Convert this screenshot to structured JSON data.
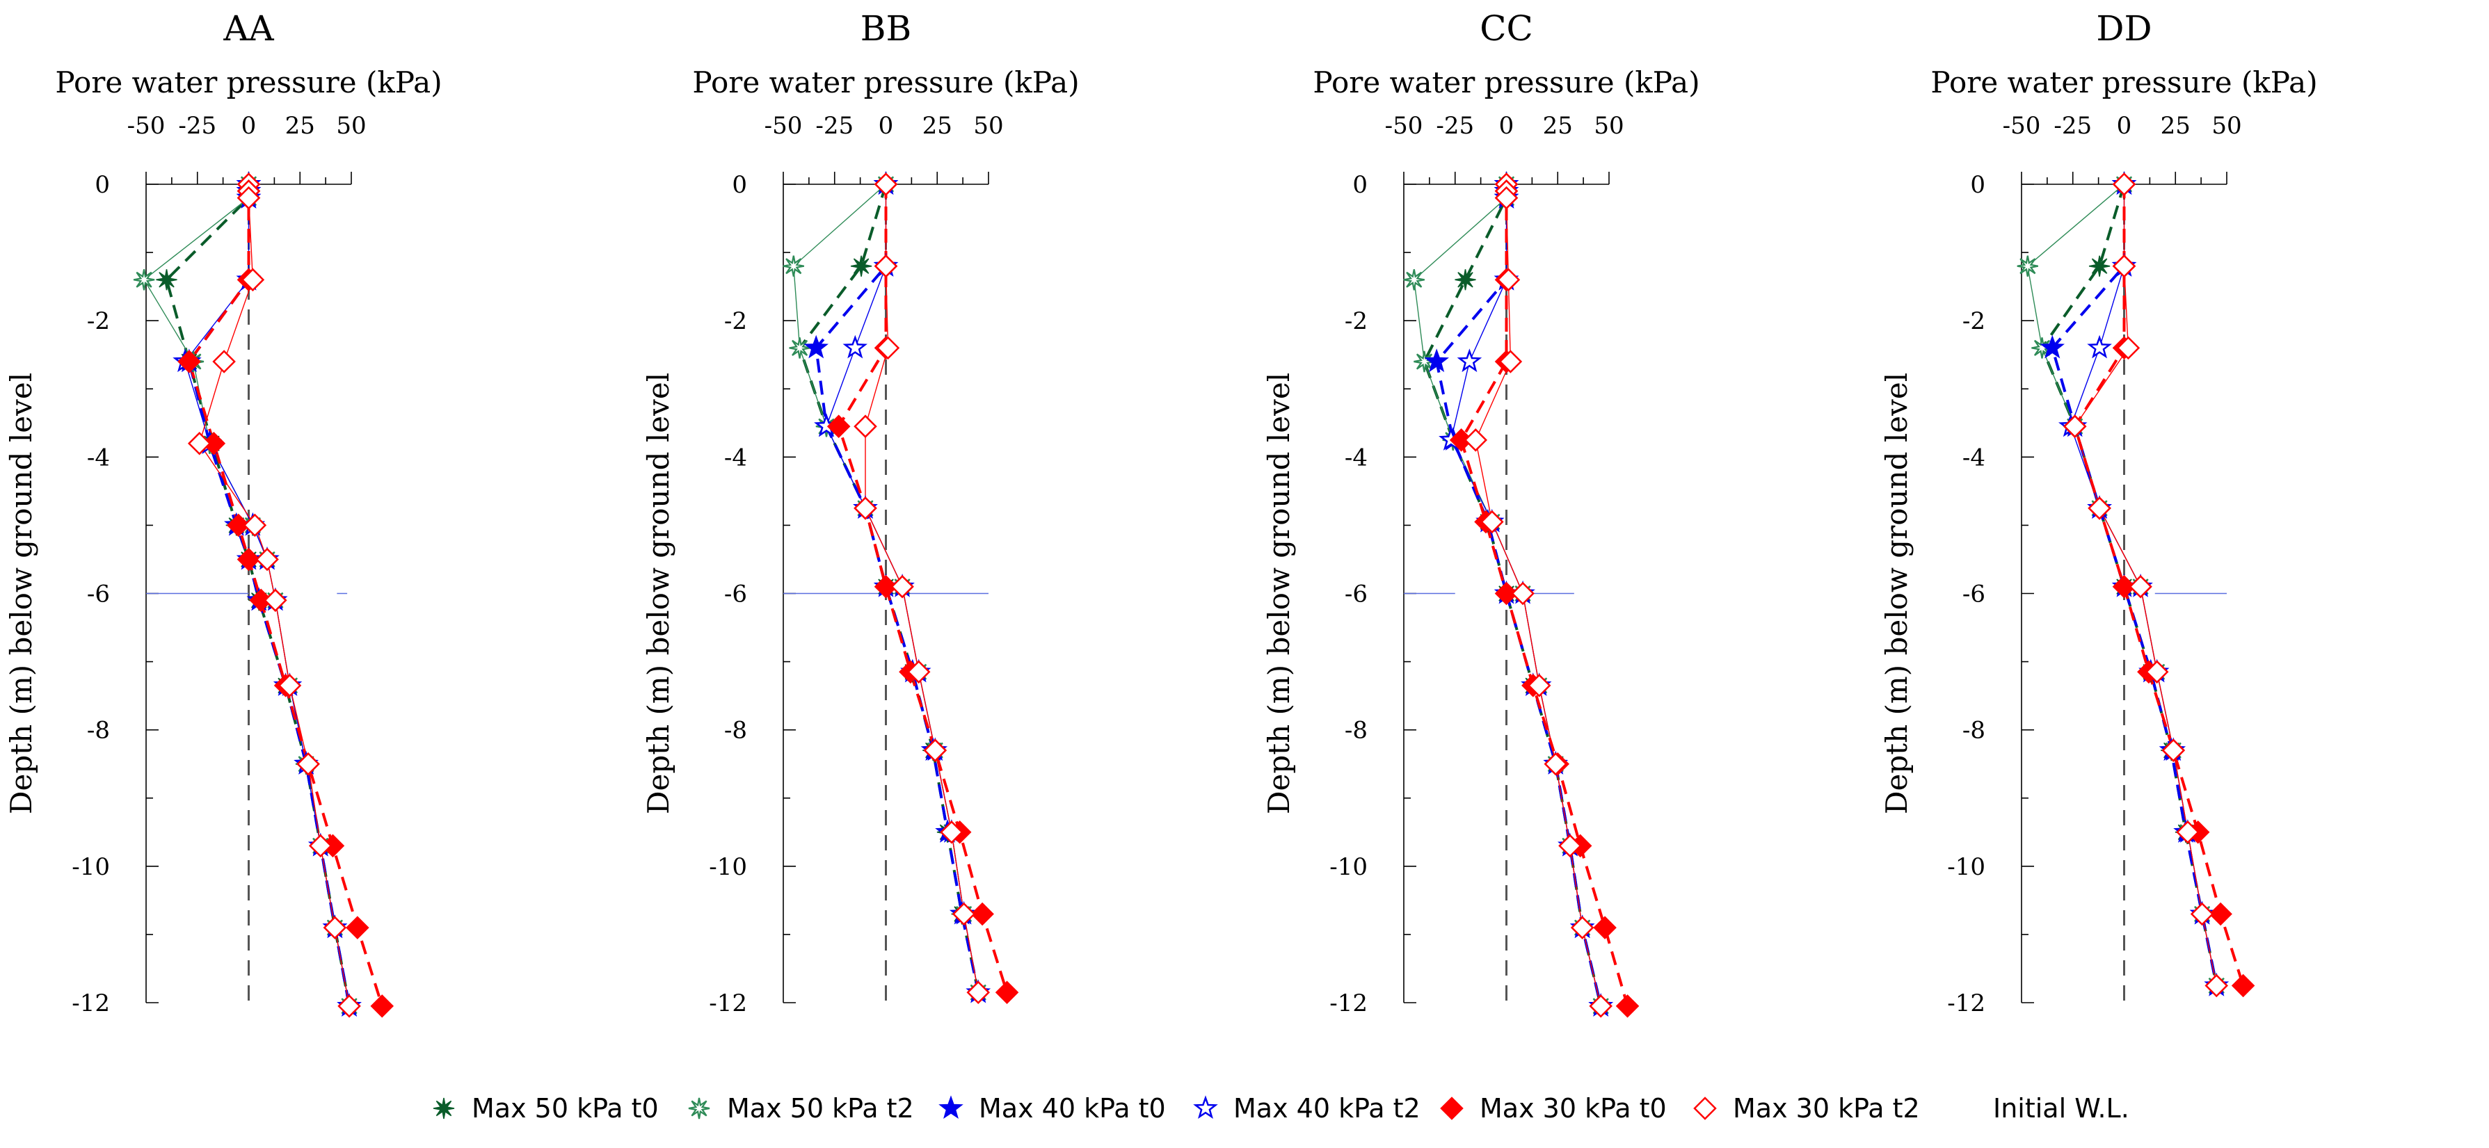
{
  "chart_data": [
    {
      "type": "line",
      "title": "AA",
      "xlabel": "Pore water pressure (kPa)",
      "ylabel": "Depth (m) below ground level",
      "xlim": [
        -50,
        50
      ],
      "ylim": [
        -12,
        0
      ],
      "xticks": [
        -50,
        -25,
        0,
        25,
        50
      ],
      "yticks": [
        0,
        -2,
        -4,
        -6,
        -8,
        -10,
        -12
      ],
      "initial_wl": {
        "depth": -6,
        "segments": [
          [
            -50,
            0
          ],
          [
            43,
            48
          ]
        ]
      },
      "series": [
        {
          "name": "Max 50 kPa t0",
          "depth": [
            0,
            -0.1,
            -0.2,
            -1.4,
            -2.6,
            -3.8,
            -5.0,
            -5.5,
            -6.1,
            -7.35,
            -8.5,
            -9.7,
            -10.9,
            -12.05
          ],
          "pwp": [
            0,
            0,
            0,
            -40,
            -29,
            -18,
            -6,
            0,
            5,
            18,
            28,
            35,
            42,
            49
          ]
        },
        {
          "name": "Max 50 kPa t2",
          "depth": [
            0,
            -0.1,
            -0.2,
            -1.4,
            -2.6,
            -3.8,
            -5.0,
            -5.5,
            -6.1,
            -7.35,
            -8.5,
            -9.7,
            -10.9,
            -12.05
          ],
          "pwp": [
            0,
            0,
            0,
            -51,
            -27,
            -19,
            2,
            9,
            13,
            20,
            28,
            35,
            42,
            49
          ]
        },
        {
          "name": "Max 40 kPa t0",
          "depth": [
            0,
            -0.1,
            -0.2,
            -1.4,
            -2.6,
            -3.8,
            -5.0,
            -5.5,
            -6.1,
            -7.35,
            -8.5,
            -9.7,
            -10.9,
            -12.05
          ],
          "pwp": [
            0,
            0,
            0,
            0,
            -29,
            -19,
            -6,
            0,
            5,
            18,
            28,
            35,
            42,
            49
          ]
        },
        {
          "name": "Max 40 kPa t2",
          "depth": [
            0,
            -0.1,
            -0.2,
            -1.4,
            -2.6,
            -3.8,
            -5.0,
            -5.5,
            -6.1,
            -7.35,
            -8.5,
            -9.7,
            -10.9,
            -12.05
          ],
          "pwp": [
            0,
            0,
            0,
            0,
            -31,
            -19,
            2,
            9,
            13,
            20,
            28,
            35,
            42,
            49
          ]
        },
        {
          "name": "Max 30 kPa t0",
          "depth": [
            0,
            -0.1,
            -0.2,
            -1.4,
            -2.6,
            -3.8,
            -5.0,
            -5.5,
            -6.1,
            -7.35,
            -8.5,
            -9.7,
            -10.9,
            -12.05
          ],
          "pwp": [
            0,
            0,
            0,
            0,
            -29,
            -17,
            -5,
            0,
            6,
            18,
            29,
            41,
            53,
            65
          ]
        },
        {
          "name": "Max 30 kPa t2",
          "depth": [
            0,
            -0.1,
            -0.2,
            -1.4,
            -2.6,
            -3.8,
            -5.0,
            -5.5,
            -6.1,
            -7.35,
            -8.5,
            -9.7,
            -10.9,
            -12.05
          ],
          "pwp": [
            0,
            0,
            0,
            2,
            -12,
            -24,
            3,
            9,
            13,
            20,
            29,
            35,
            42,
            49
          ]
        }
      ]
    },
    {
      "type": "line",
      "title": "BB",
      "xlabel": "Pore water pressure (kPa)",
      "ylabel": "Depth (m) below ground level",
      "xlim": [
        -50,
        50
      ],
      "ylim": [
        -12,
        0
      ],
      "xticks": [
        -50,
        -25,
        0,
        25,
        50
      ],
      "yticks": [
        0,
        -2,
        -4,
        -6,
        -8,
        -10,
        -12
      ],
      "initial_wl": {
        "depth": -6,
        "segments": [
          [
            -50,
            50
          ]
        ]
      },
      "series": [
        {
          "name": "Max 50 kPa t0",
          "depth": [
            0,
            -1.2,
            -2.4,
            -3.55,
            -4.75,
            -5.9,
            -7.15,
            -8.3,
            -9.5,
            -10.7,
            -11.85
          ],
          "pwp": [
            0,
            -12,
            -42,
            -29,
            -10,
            0,
            13,
            23,
            30,
            37,
            45
          ]
        },
        {
          "name": "Max 50 kPa t2",
          "depth": [
            0,
            -1.2,
            -2.4,
            -3.55,
            -4.75,
            -5.9,
            -7.15,
            -8.3,
            -9.5,
            -10.7,
            -11.85
          ],
          "pwp": [
            0,
            -45,
            -42,
            -29,
            -10,
            8,
            16,
            24,
            32,
            38,
            45
          ]
        },
        {
          "name": "Max 40 kPa t0",
          "depth": [
            0,
            -1.2,
            -2.4,
            -3.55,
            -4.75,
            -5.9,
            -7.15,
            -8.3,
            -9.5,
            -10.7,
            -11.85
          ],
          "pwp": [
            0,
            0,
            -34,
            -29,
            -10,
            0,
            13,
            23,
            30,
            37,
            45
          ]
        },
        {
          "name": "Max 40 kPa t2",
          "depth": [
            0,
            -1.2,
            -2.4,
            -3.55,
            -4.75,
            -5.9,
            -7.15,
            -8.3,
            -9.5,
            -10.7,
            -11.85
          ],
          "pwp": [
            0,
            0,
            -15,
            -29,
            -10,
            8,
            16,
            24,
            32,
            38,
            45
          ]
        },
        {
          "name": "Max 30 kPa t0",
          "depth": [
            0,
            -1.2,
            -2.4,
            -3.55,
            -4.75,
            -5.9,
            -7.15,
            -8.3,
            -9.5,
            -10.7,
            -11.85
          ],
          "pwp": [
            0,
            0,
            0,
            -23,
            -10,
            0,
            12,
            24,
            36,
            47,
            59
          ]
        },
        {
          "name": "Max 30 kPa t2",
          "depth": [
            0,
            -1.2,
            -2.4,
            -3.55,
            -4.75,
            -5.9,
            -7.15,
            -8.3,
            -9.5,
            -10.7,
            -11.85
          ],
          "pwp": [
            0,
            0,
            1,
            -10,
            -10,
            8,
            16,
            24,
            32,
            38,
            45
          ]
        }
      ]
    },
    {
      "type": "line",
      "title": "CC",
      "xlabel": "Pore water pressure (kPa)",
      "ylabel": "Depth (m) below ground level",
      "xlim": [
        -50,
        50
      ],
      "ylim": [
        -12,
        0
      ],
      "xticks": [
        -50,
        -25,
        0,
        25,
        50
      ],
      "yticks": [
        0,
        -2,
        -4,
        -6,
        -8,
        -10,
        -12
      ],
      "initial_wl": {
        "depth": -6,
        "segments": [
          [
            -50,
            -25
          ],
          [
            0,
            33
          ]
        ]
      },
      "series": [
        {
          "name": "Max 50 kPa t0",
          "depth": [
            0,
            -0.1,
            -0.2,
            -1.4,
            -2.6,
            -3.75,
            -4.95,
            -6.0,
            -7.35,
            -8.5,
            -9.7,
            -10.9,
            -12.05
          ],
          "pwp": [
            0,
            0,
            0,
            -20,
            -40,
            -26,
            -9,
            0,
            13,
            24,
            31,
            37,
            46
          ]
        },
        {
          "name": "Max 50 kPa t2",
          "depth": [
            0,
            -0.1,
            -0.2,
            -1.4,
            -2.6,
            -3.75,
            -4.95,
            -6.0,
            -7.35,
            -8.5,
            -9.7,
            -10.9,
            -12.05
          ],
          "pwp": [
            0,
            0,
            0,
            -45,
            -40,
            -26,
            -7,
            8,
            16,
            24,
            31,
            37,
            46
          ]
        },
        {
          "name": "Max 40 kPa t0",
          "depth": [
            0,
            -0.1,
            -0.2,
            -1.4,
            -2.6,
            -3.75,
            -4.95,
            -6.0,
            -7.35,
            -8.5,
            -9.7,
            -10.9,
            -12.05
          ],
          "pwp": [
            0,
            0,
            0,
            0,
            -34,
            -26,
            -9,
            0,
            13,
            24,
            31,
            37,
            46
          ]
        },
        {
          "name": "Max 40 kPa t2",
          "depth": [
            0,
            -0.1,
            -0.2,
            -1.4,
            -2.6,
            -3.75,
            -4.95,
            -6.0,
            -7.35,
            -8.5,
            -9.7,
            -10.9,
            -12.05
          ],
          "pwp": [
            0,
            0,
            0,
            0,
            -18,
            -27,
            -7,
            8,
            16,
            24,
            31,
            37,
            46
          ]
        },
        {
          "name": "Max 30 kPa t0",
          "depth": [
            0,
            -0.1,
            -0.2,
            -1.4,
            -2.6,
            -3.75,
            -4.95,
            -6.0,
            -7.35,
            -8.5,
            -9.7,
            -10.9,
            -12.05
          ],
          "pwp": [
            0,
            0,
            0,
            0,
            0,
            -22,
            -10,
            0,
            13,
            25,
            36,
            48,
            59
          ]
        },
        {
          "name": "Max 30 kPa t2",
          "depth": [
            0,
            -0.1,
            -0.2,
            -1.4,
            -2.6,
            -3.75,
            -4.95,
            -6.0,
            -7.35,
            -8.5,
            -9.7,
            -10.9,
            -12.05
          ],
          "pwp": [
            0,
            0,
            0,
            1,
            2,
            -15,
            -7,
            8,
            16,
            24,
            31,
            37,
            46
          ]
        }
      ]
    },
    {
      "type": "line",
      "title": "DD",
      "xlabel": "Pore water pressure (kPa)",
      "ylabel": "Depth (m) below ground level",
      "xlim": [
        -50,
        50
      ],
      "ylim": [
        -12,
        0
      ],
      "xticks": [
        -50,
        -25,
        0,
        25,
        50
      ],
      "yticks": [
        0,
        -2,
        -4,
        -6,
        -8,
        -10,
        -12
      ],
      "initial_wl": {
        "depth": -6,
        "segments": [
          [
            15,
            50
          ]
        ]
      },
      "series": [
        {
          "name": "Max 50 kPa t0",
          "depth": [
            0,
            -1.2,
            -2.4,
            -3.55,
            -4.75,
            -5.9,
            -7.15,
            -8.3,
            -9.5,
            -10.7,
            -11.75
          ],
          "pwp": [
            0,
            -12,
            -40,
            -24,
            -12,
            0,
            13,
            23,
            30,
            38,
            45
          ]
        },
        {
          "name": "Max 50 kPa t2",
          "depth": [
            0,
            -1.2,
            -2.4,
            -3.55,
            -4.75,
            -5.9,
            -7.15,
            -8.3,
            -9.5,
            -10.7,
            -11.75
          ],
          "pwp": [
            0,
            -47,
            -40,
            -24,
            -12,
            8,
            16,
            24,
            31,
            38,
            45
          ]
        },
        {
          "name": "Max 40 kPa t0",
          "depth": [
            0,
            -1.2,
            -2.4,
            -3.55,
            -4.75,
            -5.9,
            -7.15,
            -8.3,
            -9.5,
            -10.7,
            -11.75
          ],
          "pwp": [
            0,
            0,
            -35,
            -24,
            -12,
            0,
            13,
            23,
            30,
            38,
            45
          ]
        },
        {
          "name": "Max 40 kPa t2",
          "depth": [
            0,
            -1.2,
            -2.4,
            -3.55,
            -4.75,
            -5.9,
            -7.15,
            -8.3,
            -9.5,
            -10.7,
            -11.75
          ],
          "pwp": [
            0,
            0,
            -12,
            -26,
            -12,
            8,
            16,
            24,
            31,
            38,
            45
          ]
        },
        {
          "name": "Max 30 kPa t0",
          "depth": [
            0,
            -1.2,
            -2.4,
            -3.55,
            -4.75,
            -5.9,
            -7.15,
            -8.3,
            -9.5,
            -10.7,
            -11.75
          ],
          "pwp": [
            0,
            0,
            0,
            -24,
            -12,
            0,
            12,
            24,
            36,
            47,
            58
          ]
        },
        {
          "name": "Max 30 kPa t2",
          "depth": [
            0,
            -1.2,
            -2.4,
            -3.55,
            -4.75,
            -5.9,
            -7.15,
            -8.3,
            -9.5,
            -10.7,
            -11.75
          ],
          "pwp": [
            0,
            0,
            2,
            -24,
            -12,
            8,
            16,
            24,
            31,
            38,
            45
          ]
        }
      ]
    }
  ],
  "series_styles": [
    {
      "name": "Max 50 kPa t0",
      "color": "#0a5c2a",
      "marker": "asterisk",
      "fill": true
    },
    {
      "name": "Max 50 kPa t2",
      "color": "#2e8b57",
      "marker": "asterisk",
      "fill": false
    },
    {
      "name": "Max 40 kPa t0",
      "color": "#0000ee",
      "marker": "star",
      "fill": true
    },
    {
      "name": "Max 40 kPa t2",
      "color": "#0000ee",
      "marker": "star",
      "fill": false
    },
    {
      "name": "Max 30 kPa t0",
      "color": "#ff0000",
      "marker": "diamond",
      "fill": true
    },
    {
      "name": "Max 30 kPa t2",
      "color": "#ff0000",
      "marker": "diamond",
      "fill": false
    }
  ],
  "legend": {
    "items": [
      "Max 50 kPa t0",
      "Max 50 kPa t2",
      "Max 40 kPa t0",
      "Max 40 kPa t2",
      "Max 30 kPa t0",
      "Max 30 kPa t2",
      "Initial W.L."
    ],
    "placement": "bottom"
  },
  "colors": {
    "wl_line": "#5a6fe0",
    "zero_line": "#555555",
    "axis": "#000000"
  }
}
